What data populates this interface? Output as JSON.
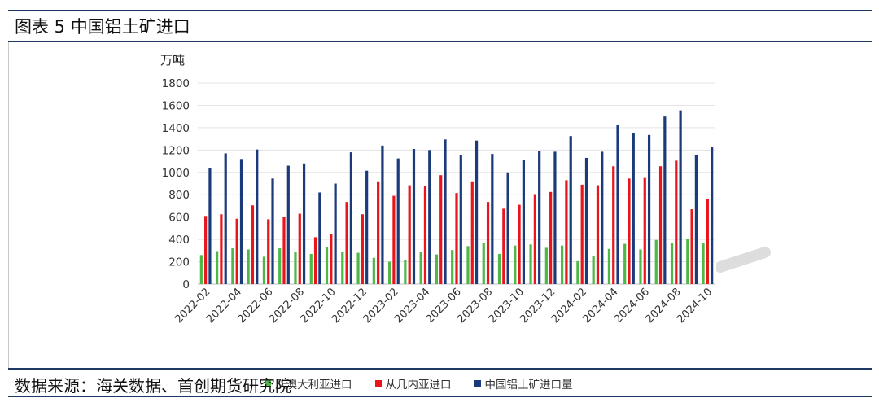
{
  "header": {
    "title": "图表 5 中国铝土矿进口"
  },
  "footer": {
    "source": "数据来源：海关数据、首创期货研究院"
  },
  "chart_data": {
    "type": "bar",
    "title": "",
    "unit_label": "万吨",
    "xlabel": "",
    "ylabel": "",
    "ylim": [
      0,
      1800
    ],
    "yticks": [
      0,
      200,
      400,
      600,
      800,
      1000,
      1200,
      1400,
      1600,
      1800
    ],
    "grid": true,
    "legend_position": "bottom",
    "categories": [
      "2022-02",
      "2022-03",
      "2022-04",
      "2022-05",
      "2022-06",
      "2022-07",
      "2022-08",
      "2022-09",
      "2022-10",
      "2022-11",
      "2022-12",
      "2023-01",
      "2023-02",
      "2023-03",
      "2023-04",
      "2023-05",
      "2023-06",
      "2023-07",
      "2023-08",
      "2023-09",
      "2023-10",
      "2023-11",
      "2023-12",
      "2024-01",
      "2024-02",
      "2024-03",
      "2024-04",
      "2024-05",
      "2024-06",
      "2024-07",
      "2024-08",
      "2024-09",
      "2024-10"
    ],
    "tick_labels": [
      "2022-02",
      "2022-04",
      "2022-06",
      "2022-08",
      "2022-10",
      "2022-12",
      "2023-02",
      "2023-04",
      "2023-06",
      "2023-08",
      "2023-10",
      "2023-12",
      "2024-02",
      "2024-04",
      "2024-06",
      "2024-08",
      "2024-10"
    ],
    "series": [
      {
        "name": "从澳大利亚进口",
        "color": "#4db848",
        "values": [
          260,
          295,
          320,
          310,
          245,
          320,
          285,
          270,
          335,
          285,
          280,
          235,
          200,
          215,
          290,
          265,
          305,
          340,
          365,
          270,
          345,
          355,
          325,
          345,
          205,
          255,
          315,
          360,
          310,
          395,
          365,
          405,
          370
        ]
      },
      {
        "name": "从几内亚进口",
        "color": "#e8151b",
        "values": [
          610,
          625,
          585,
          705,
          580,
          600,
          630,
          420,
          445,
          735,
          625,
          920,
          790,
          885,
          880,
          975,
          815,
          920,
          735,
          675,
          710,
          805,
          825,
          930,
          890,
          885,
          1055,
          945,
          950,
          1055,
          1105,
          670,
          765
        ]
      },
      {
        "name": "中国铝土矿进口量",
        "color": "#1a3a7a",
        "values": [
          1035,
          1170,
          1120,
          1205,
          945,
          1060,
          1080,
          820,
          900,
          1180,
          1015,
          1240,
          1125,
          1210,
          1200,
          1295,
          1155,
          1285,
          1165,
          1000,
          1115,
          1195,
          1185,
          1325,
          1130,
          1185,
          1425,
          1355,
          1335,
          1500,
          1555,
          1155,
          1230
        ]
      }
    ]
  }
}
